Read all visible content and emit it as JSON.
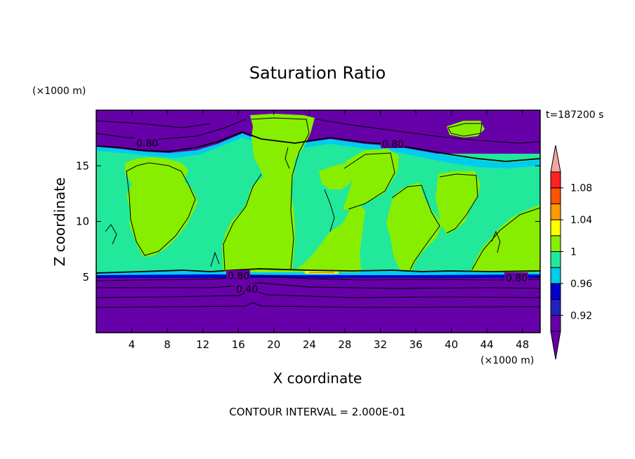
{
  "chart_data": {
    "type": "heatmap",
    "title": "Saturation Ratio",
    "xlabel": "X coordinate",
    "ylabel": "Z coordinate",
    "x_unit": "(×1000 m)",
    "y_unit": "(×1000 m)",
    "time_label": "t=187200 s",
    "footer": "CONTOUR INTERVAL = 2.000E-01",
    "xlim": [
      0,
      50
    ],
    "ylim": [
      0,
      20
    ],
    "x_ticks": [
      4,
      8,
      12,
      16,
      20,
      24,
      28,
      32,
      36,
      40,
      44,
      48
    ],
    "y_ticks": [
      5,
      10,
      15
    ],
    "colorbar": {
      "levels": [
        0.9,
        0.92,
        0.94,
        0.96,
        0.98,
        1.0,
        1.02,
        1.04,
        1.06,
        1.08,
        1.1
      ],
      "tick_labels": [
        "0.92",
        "0.96",
        "1",
        "1.04",
        "1.08"
      ],
      "colors": [
        "#6600a8",
        "#2222bb",
        "#0000cc",
        "#00ccee",
        "#22e89c",
        "#88ee00",
        "#ffff00",
        "#ff9900",
        "#ff5500",
        "#ff2222",
        "#f5a3a3"
      ]
    },
    "contour_labels": [
      "0.80",
      "0.80",
      "0.80",
      "0.40",
      "0.80"
    ],
    "regions": {
      "lower_dry_layer": {
        "z_range": [
          0,
          5
        ],
        "color": "#6600a8"
      },
      "cloud_layer": {
        "z_range": [
          5,
          15.5
        ],
        "color": "#22e89c"
      },
      "upper_dry_layer": {
        "z_range": [
          15.5,
          20
        ],
        "color": "#6600a8"
      }
    }
  }
}
